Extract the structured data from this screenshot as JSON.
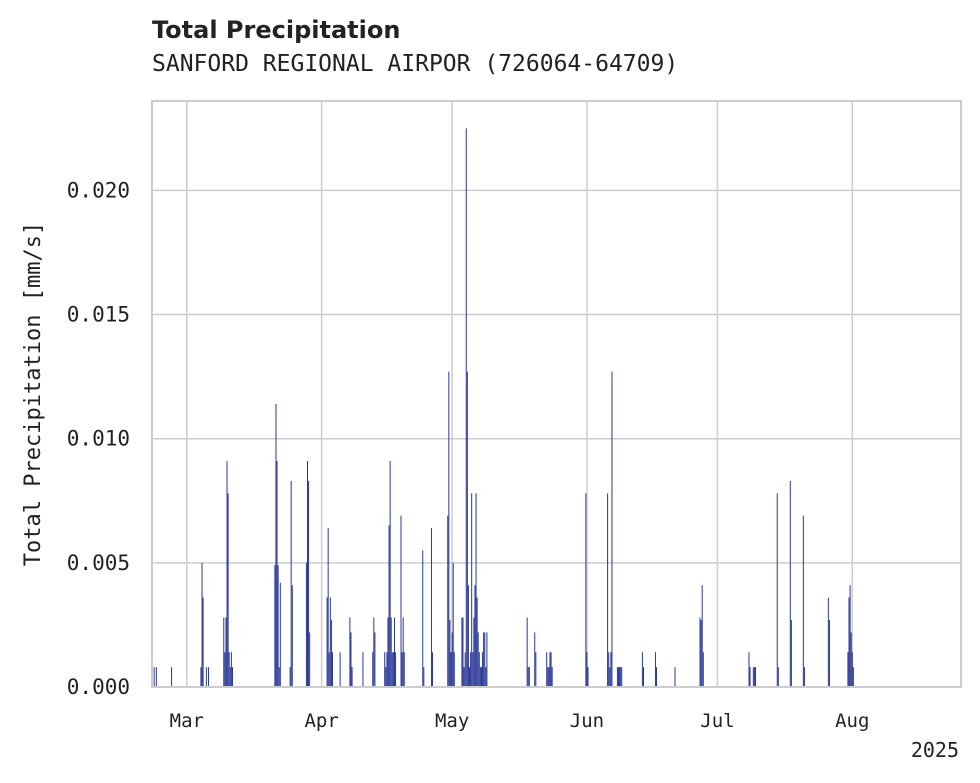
{
  "chart_data": {
    "type": "bar",
    "title": "Total Precipitation",
    "subtitle": "SANFORD REGIONAL AIRPOR (726064-64709)",
    "ylabel": "Total Precipitation [mm/s]",
    "xlabel": "",
    "ylim": [
      0,
      0.0236
    ],
    "xlim": [
      "2025-02-21",
      "2025-08-26"
    ],
    "yticks": [
      0.0,
      0.005,
      0.01,
      0.015,
      0.02
    ],
    "ytick_labels": [
      "0.000",
      "0.005",
      "0.010",
      "0.015",
      "0.020"
    ],
    "xticks": [
      "2025-03-01",
      "2025-04-01",
      "2025-05-01",
      "2025-06-01",
      "2025-07-01",
      "2025-08-01"
    ],
    "xtick_labels": [
      "Mar",
      "Apr",
      "May",
      "Jun",
      "Jul",
      "Aug"
    ],
    "year_label": "2025",
    "grid": true,
    "color": "#253494",
    "series": [
      {
        "x": [
          "2025-02-21T12:00",
          "2025-02-22T00:00",
          "2025-02-25T12:00",
          "2025-03-04T06:00",
          "2025-03-04T12:00",
          "2025-03-04T18:00",
          "2025-03-05T12:00",
          "2025-03-06T00:00",
          "2025-03-09T12:00",
          "2025-03-09T18:00",
          "2025-03-10T00:00",
          "2025-03-10T06:00",
          "2025-03-10T12:00",
          "2025-03-10T18:00",
          "2025-03-11T00:00",
          "2025-03-11T06:00",
          "2025-03-11T12:00",
          "2025-03-21T06:00",
          "2025-03-21T12:00",
          "2025-03-21T18:00",
          "2025-03-22T00:00",
          "2025-03-22T06:00",
          "2025-03-22T12:00",
          "2025-03-24T18:00",
          "2025-03-25T00:00",
          "2025-03-25T06:00",
          "2025-03-28T12:00",
          "2025-03-28T18:00",
          "2025-03-29T00:00",
          "2025-03-29T06:00",
          "2025-04-02T06:00",
          "2025-04-02T12:00",
          "2025-04-02T18:00",
          "2025-04-03T00:00",
          "2025-04-03T06:00",
          "2025-04-03T12:00",
          "2025-04-05T06:00",
          "2025-04-07T12:00",
          "2025-04-07T18:00",
          "2025-04-08T00:00",
          "2025-04-10T12:00",
          "2025-04-12T18:00",
          "2025-04-13T00:00",
          "2025-04-13T06:00",
          "2025-04-15T12:00",
          "2025-04-15T18:00",
          "2025-04-16T00:00",
          "2025-04-16T06:00",
          "2025-04-16T12:00",
          "2025-04-16T18:00",
          "2025-04-17T00:00",
          "2025-04-17T06:00",
          "2025-04-17T12:00",
          "2025-04-17T18:00",
          "2025-04-18T00:00",
          "2025-04-19T06:00",
          "2025-04-19T12:00",
          "2025-04-19T18:00",
          "2025-04-20T00:00",
          "2025-04-24T06:00",
          "2025-04-24T12:00",
          "2025-04-26T06:00",
          "2025-04-26T12:00",
          "2025-04-30T00:00",
          "2025-04-30T06:00",
          "2025-04-30T12:00",
          "2025-04-30T18:00",
          "2025-05-01T00:00",
          "2025-05-01T06:00",
          "2025-05-01T12:00",
          "2025-05-03T06:00",
          "2025-05-03T12:00",
          "2025-05-03T18:00",
          "2025-05-04T00:00",
          "2025-05-04T06:00",
          "2025-05-04T12:00",
          "2025-05-04T18:00",
          "2025-05-05T00:00",
          "2025-05-05T06:00",
          "2025-05-05T12:00",
          "2025-05-05T18:00",
          "2025-05-06T00:00",
          "2025-05-06T06:00",
          "2025-05-06T12:00",
          "2025-05-06T18:00",
          "2025-05-07T00:00",
          "2025-05-07T06:00",
          "2025-05-07T12:00",
          "2025-05-07T18:00",
          "2025-05-08T00:00",
          "2025-05-08T06:00",
          "2025-05-08T12:00",
          "2025-05-08T18:00",
          "2025-05-09T00:00",
          "2025-05-18T06:00",
          "2025-05-18T12:00",
          "2025-05-18T18:00",
          "2025-05-20T00:00",
          "2025-05-20T06:00",
          "2025-05-22T18:00",
          "2025-05-23T00:00",
          "2025-05-23T06:00",
          "2025-05-23T12:00",
          "2025-05-23T18:00",
          "2025-05-24T00:00",
          "2025-05-31T18:00",
          "2025-06-01T00:00",
          "2025-06-01T06:00",
          "2025-06-05T18:00",
          "2025-06-06T00:00",
          "2025-06-06T06:00",
          "2025-06-06T12:00",
          "2025-06-06T18:00",
          "2025-06-08T00:00",
          "2025-06-08T06:00",
          "2025-06-08T12:00",
          "2025-06-08T18:00",
          "2025-06-09T00:00",
          "2025-06-13T18:00",
          "2025-06-14T00:00",
          "2025-06-16T18:00",
          "2025-06-17T00:00",
          "2025-06-21T06:00",
          "2025-06-27T00:00",
          "2025-06-27T06:00",
          "2025-06-27T12:00",
          "2025-06-27T18:00",
          "2025-07-08T06:00",
          "2025-07-08T12:00",
          "2025-07-09T06:00",
          "2025-07-09T12:00",
          "2025-07-09T18:00",
          "2025-07-14T18:00",
          "2025-07-15T00:00",
          "2025-07-17T18:00",
          "2025-07-18T00:00",
          "2025-07-20T18:00",
          "2025-07-21T00:00",
          "2025-07-26T12:00",
          "2025-07-26T18:00",
          "2025-07-31T00:00",
          "2025-07-31T06:00",
          "2025-07-31T12:00",
          "2025-07-31T18:00",
          "2025-08-01T00:00",
          "2025-08-01T06:00"
        ],
        "values": [
          0.0008,
          0.0008,
          0.0008,
          0.0008,
          0.005,
          0.0036,
          0.0008,
          0.0008,
          0.0028,
          0.0014,
          0.0028,
          0.0091,
          0.0078,
          0.0014,
          0.0008,
          0.0014,
          0.0008,
          0.0049,
          0.0114,
          0.0091,
          0.0049,
          0.0008,
          0.0042,
          0.0008,
          0.0083,
          0.0041,
          0.005,
          0.0091,
          0.0083,
          0.0022,
          0.0036,
          0.0064,
          0.0014,
          0.0036,
          0.0027,
          0.0014,
          0.0014,
          0.0028,
          0.0022,
          0.0008,
          0.0014,
          0.0014,
          0.0028,
          0.0022,
          0.0014,
          0.0008,
          0.0014,
          0.0028,
          0.0065,
          0.0091,
          0.0028,
          0.0014,
          0.0014,
          0.0028,
          0.0014,
          0.0069,
          0.0014,
          0.0028,
          0.0014,
          0.0055,
          0.0008,
          0.0064,
          0.0014,
          0.0069,
          0.0127,
          0.0027,
          0.0014,
          0.0022,
          0.005,
          0.0014,
          0.0028,
          0.0028,
          0.0008,
          0.0014,
          0.0225,
          0.0127,
          0.0041,
          0.0008,
          0.0014,
          0.0078,
          0.0014,
          0.0028,
          0.0041,
          0.0078,
          0.0036,
          0.0022,
          0.0014,
          0.0008,
          0.0008,
          0.0014,
          0.0022,
          0.0022,
          0.0008,
          0.0022,
          0.0028,
          0.0008,
          0.0008,
          0.0022,
          0.0014,
          0.0014,
          0.0008,
          0.0008,
          0.0014,
          0.0014,
          0.0008,
          0.0078,
          0.0014,
          0.0008,
          0.0078,
          0.0014,
          0.0008,
          0.0014,
          0.0127,
          0.0008,
          0.0008,
          0.0008,
          0.0008,
          0.0008,
          0.0014,
          0.0008,
          0.0014,
          0.0008,
          0.0008,
          0.0028,
          0.0027,
          0.0041,
          0.0014,
          0.0014,
          0.0008,
          0.0008,
          0.0008,
          0.0008,
          0.0078,
          0.0008,
          0.0083,
          0.0027,
          0.0069,
          0.0008,
          0.0036,
          0.0027,
          0.0014,
          0.0036,
          0.0041,
          0.0022,
          0.0014,
          0.0008
        ]
      }
    ]
  }
}
